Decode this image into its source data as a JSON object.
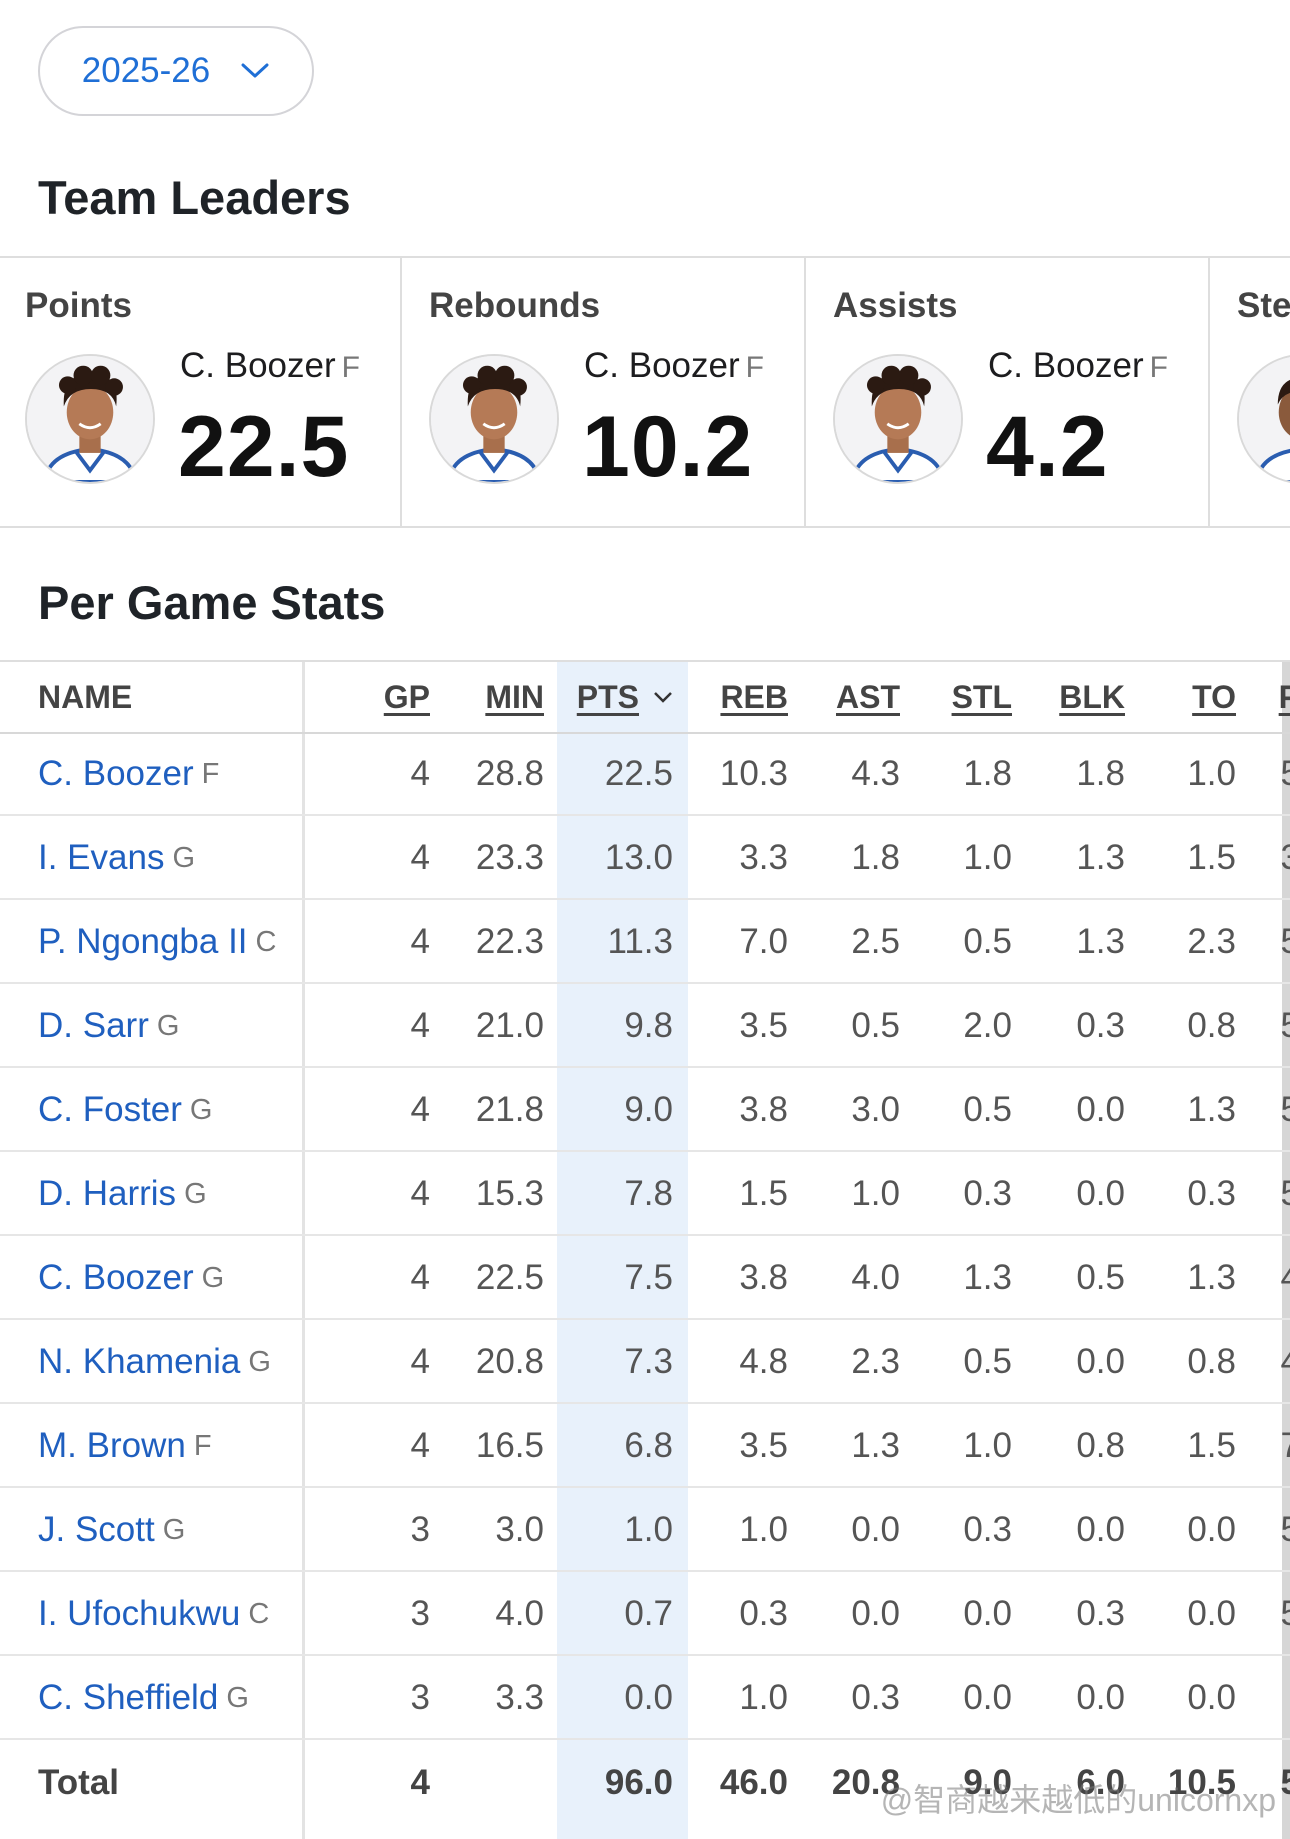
{
  "season_select": {
    "value": "2025-26"
  },
  "team_leaders": {
    "title": "Team Leaders",
    "cards": [
      {
        "category": "Points",
        "player": "C. Boozer",
        "pos": "F",
        "value": "22.5"
      },
      {
        "category": "Rebounds",
        "player": "C. Boozer",
        "pos": "F",
        "value": "10.2"
      },
      {
        "category": "Assists",
        "player": "C. Boozer",
        "pos": "F",
        "value": "4.2"
      },
      {
        "category": "Ste",
        "player": "",
        "pos": "",
        "value": ""
      }
    ]
  },
  "per_game": {
    "title": "Per Game Stats",
    "columns": [
      "NAME",
      "GP",
      "MIN",
      "PTS",
      "REB",
      "AST",
      "STL",
      "BLK",
      "TO",
      "P"
    ],
    "rows": [
      {
        "name": "C. Boozer",
        "pos": "F",
        "stats": [
          "4",
          "28.8",
          "22.5",
          "10.3",
          "4.3",
          "1.8",
          "1.8",
          "1.0",
          "5"
        ]
      },
      {
        "name": "I. Evans",
        "pos": "G",
        "stats": [
          "4",
          "23.3",
          "13.0",
          "3.3",
          "1.8",
          "1.0",
          "1.3",
          "1.5",
          "3"
        ]
      },
      {
        "name": "P. Ngongba II",
        "pos": "C",
        "stats": [
          "4",
          "22.3",
          "11.3",
          "7.0",
          "2.5",
          "0.5",
          "1.3",
          "2.3",
          "5"
        ]
      },
      {
        "name": "D. Sarr",
        "pos": "G",
        "stats": [
          "4",
          "21.0",
          "9.8",
          "3.5",
          "0.5",
          "2.0",
          "0.3",
          "0.8",
          "5"
        ]
      },
      {
        "name": "C. Foster",
        "pos": "G",
        "stats": [
          "4",
          "21.8",
          "9.0",
          "3.8",
          "3.0",
          "0.5",
          "0.0",
          "1.3",
          "5"
        ]
      },
      {
        "name": "D. Harris",
        "pos": "G",
        "stats": [
          "4",
          "15.3",
          "7.8",
          "1.5",
          "1.0",
          "0.3",
          "0.0",
          "0.3",
          "5"
        ]
      },
      {
        "name": "C. Boozer",
        "pos": "G",
        "stats": [
          "4",
          "22.5",
          "7.5",
          "3.8",
          "4.0",
          "1.3",
          "0.5",
          "1.3",
          "4"
        ]
      },
      {
        "name": "N. Khamenia",
        "pos": "G",
        "stats": [
          "4",
          "20.8",
          "7.3",
          "4.8",
          "2.3",
          "0.5",
          "0.0",
          "0.8",
          "4"
        ]
      },
      {
        "name": "M. Brown",
        "pos": "F",
        "stats": [
          "4",
          "16.5",
          "6.8",
          "3.5",
          "1.3",
          "1.0",
          "0.8",
          "1.5",
          "7"
        ]
      },
      {
        "name": "J. Scott",
        "pos": "G",
        "stats": [
          "3",
          "3.0",
          "1.0",
          "1.0",
          "0.0",
          "0.3",
          "0.0",
          "0.0",
          "5"
        ]
      },
      {
        "name": "I. Ufochukwu",
        "pos": "C",
        "stats": [
          "3",
          "4.0",
          "0.7",
          "0.3",
          "0.0",
          "0.0",
          "0.3",
          "0.0",
          "5"
        ]
      },
      {
        "name": "C. Sheffield",
        "pos": "G",
        "stats": [
          "3",
          "3.3",
          "0.0",
          "1.0",
          "0.3",
          "0.0",
          "0.0",
          "0.0",
          ""
        ]
      }
    ],
    "total": {
      "label": "Total",
      "stats": [
        "4",
        "",
        "96.0",
        "46.0",
        "20.8",
        "9.0",
        "6.0",
        "10.5",
        "5"
      ]
    }
  },
  "watermark": "@智商越来越低的unicornxp",
  "colors": {
    "link": "#1f5fbf",
    "accent": "#1f6fd6",
    "sorted_column_bg": "#e8f1fb"
  }
}
